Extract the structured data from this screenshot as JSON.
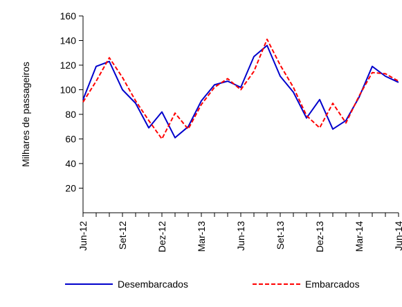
{
  "chart_data": {
    "type": "line",
    "title": "",
    "xlabel": "",
    "ylabel": "Milhares de passageiros",
    "ylim": [
      0,
      160
    ],
    "yticks": [
      20,
      40,
      60,
      80,
      100,
      120,
      140,
      160
    ],
    "x": [
      "Jun-12",
      "Jul-12",
      "Ago-12",
      "Set-12",
      "Out-12",
      "Nov-12",
      "Dez-12",
      "Jan-13",
      "Fev-13",
      "Mar-13",
      "Abr-13",
      "Mai-13",
      "Jun-13",
      "Jul-13",
      "Ago-13",
      "Set-13",
      "Out-13",
      "Nov-13",
      "Dez-13",
      "Jan-14",
      "Fev-14",
      "Mar-14",
      "Abr-14",
      "Mai-14",
      "Jun-14"
    ],
    "xticks_shown": [
      "Jun-12",
      "Set-12",
      "Dez-12",
      "Mar-13",
      "Jun-13",
      "Set-13",
      "Dez-13",
      "Mar-14",
      "Jun-14"
    ],
    "grid": false,
    "legend_position": "bottom",
    "series": [
      {
        "name": "Desembarcados",
        "color": "#0000cc",
        "dash": "solid",
        "values": [
          92,
          119,
          123,
          100,
          89,
          69,
          82,
          61,
          70,
          91,
          104,
          107,
          102,
          127,
          136,
          111,
          98,
          77,
          92,
          68,
          75,
          94,
          119,
          111,
          106
        ]
      },
      {
        "name": "Embarcados",
        "color": "#ff0000",
        "dash": "dashed",
        "values": [
          90,
          107,
          126,
          110,
          91,
          75,
          60,
          81,
          68,
          88,
          102,
          109,
          100,
          115,
          141,
          120,
          102,
          79,
          69,
          89,
          73,
          95,
          114,
          113,
          107
        ]
      }
    ]
  }
}
